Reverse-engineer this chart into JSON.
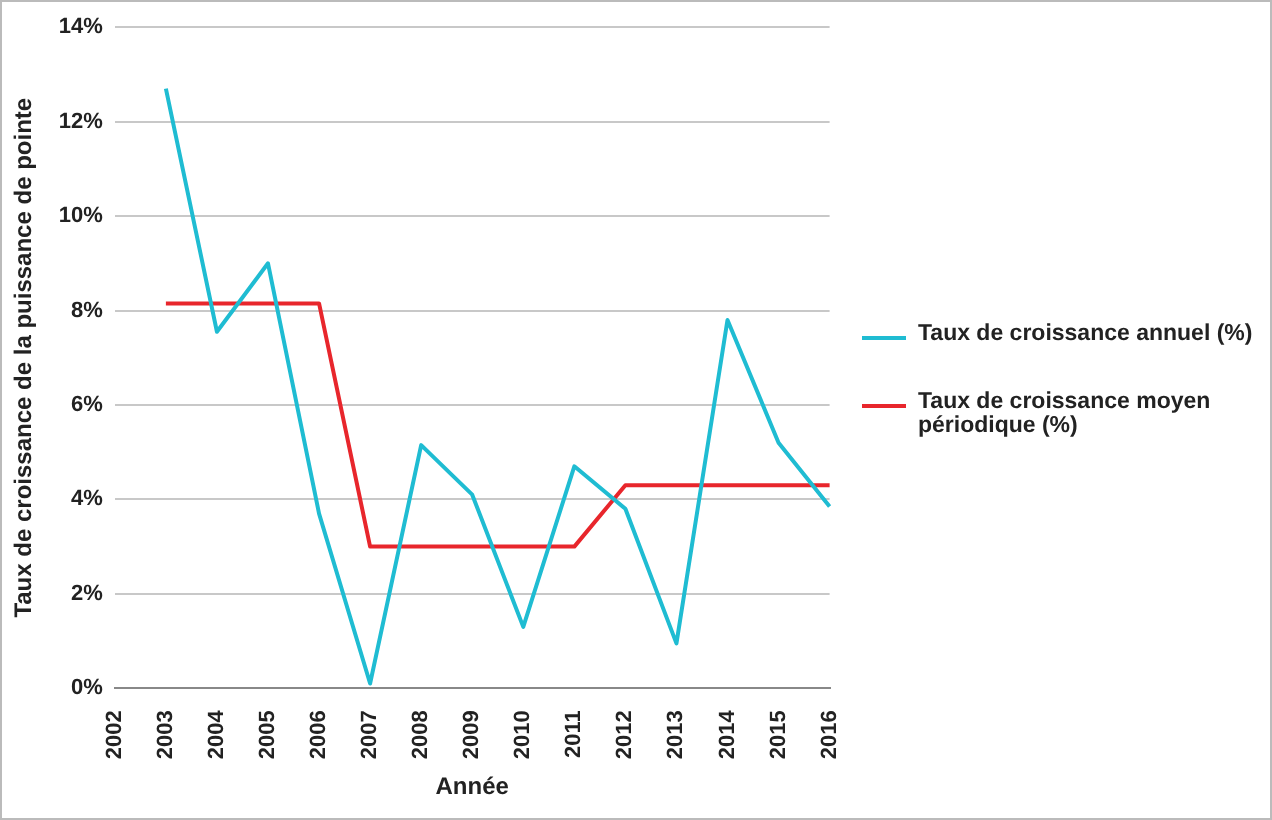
{
  "chart_data": {
    "type": "line",
    "xlabel": "Année",
    "ylabel": "Taux de croissance de la puissance de pointe",
    "categories": [
      "2002",
      "2003",
      "2004",
      "2005",
      "2006",
      "2007",
      "2008",
      "2009",
      "2010",
      "2011",
      "2012",
      "2013",
      "2014",
      "2015",
      "2016"
    ],
    "series": [
      {
        "name": "Taux de croissance annuel (%)",
        "color": "#1fbcd2",
        "values": [
          null,
          12.7,
          7.55,
          9.0,
          3.7,
          0.1,
          5.15,
          4.1,
          1.3,
          4.7,
          3.8,
          0.95,
          7.8,
          5.2,
          3.85
        ]
      },
      {
        "name": "Taux de croissance moyen périodique (%)",
        "color": "#e8262c",
        "values": [
          null,
          8.15,
          8.15,
          8.15,
          8.15,
          3.0,
          3.0,
          3.0,
          3.0,
          3.0,
          4.3,
          4.3,
          4.3,
          4.3,
          4.3
        ]
      }
    ],
    "ylim": [
      0,
      14
    ],
    "yticks": [
      {
        "value": 0,
        "label": "0%"
      },
      {
        "value": 2,
        "label": "2%"
      },
      {
        "value": 4,
        "label": "4%"
      },
      {
        "value": 6,
        "label": "6%"
      },
      {
        "value": 8,
        "label": "8%"
      },
      {
        "value": 10,
        "label": "10%"
      },
      {
        "value": 12,
        "label": "12%"
      },
      {
        "value": 14,
        "label": "14%"
      }
    ],
    "grid": "y",
    "legend": "right",
    "marker": "none",
    "line_style": "solid"
  }
}
